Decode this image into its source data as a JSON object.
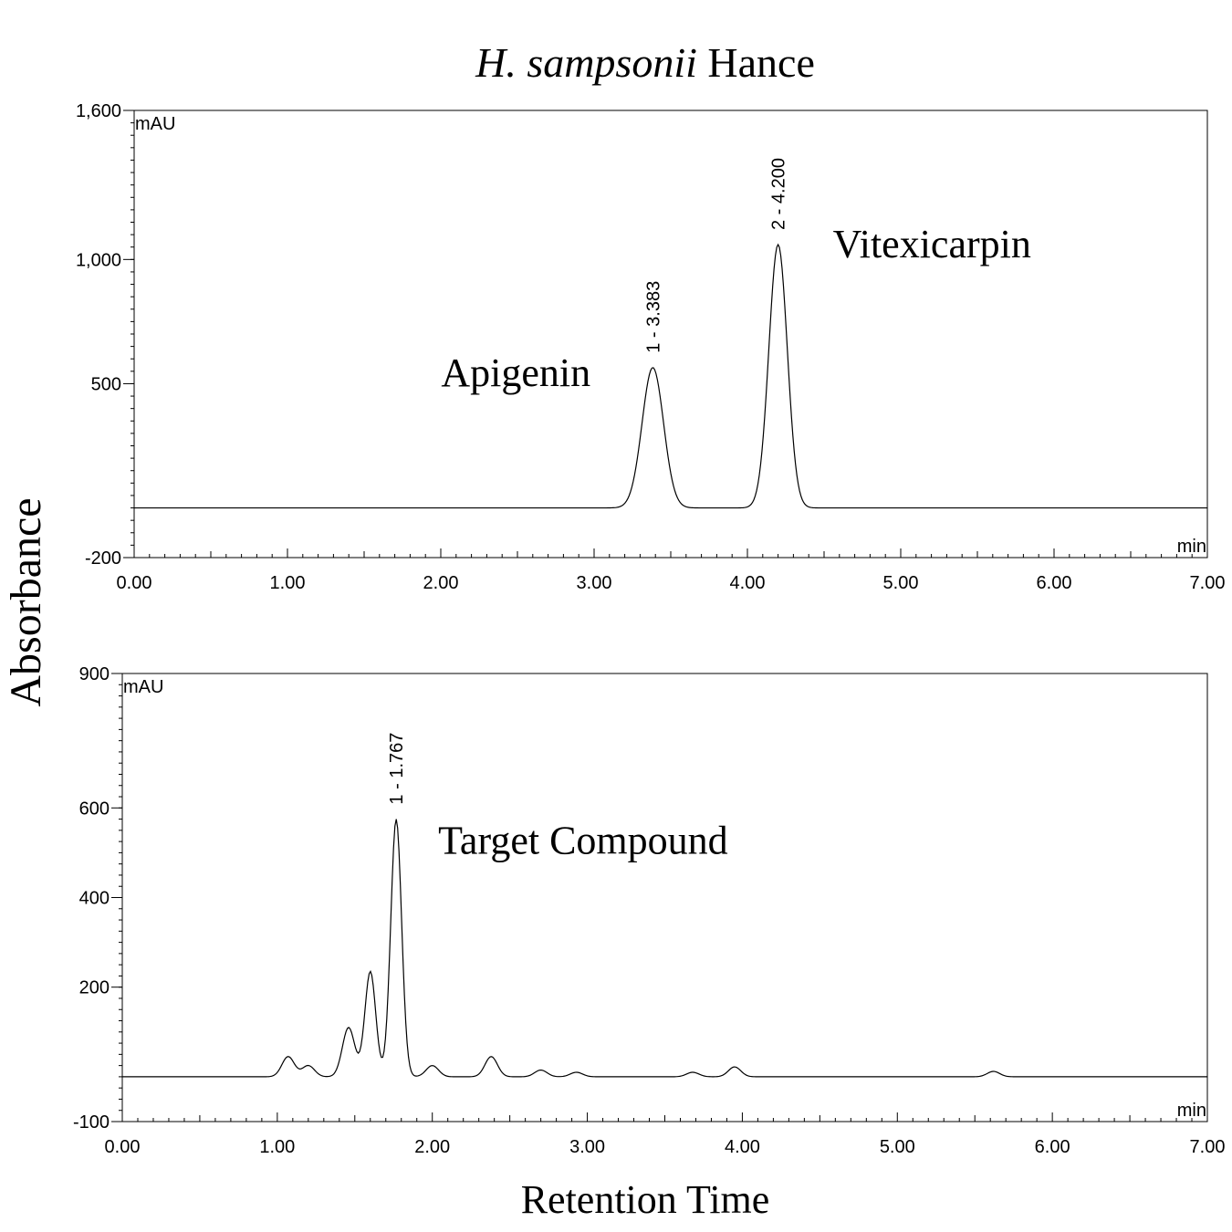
{
  "chart_data": [
    {
      "type": "line",
      "panel": "top",
      "title_italic": "H. sampsonii",
      "title_rest": " Hance",
      "ylabel": "Absorbance",
      "xlabel": "",
      "y_unit": "mAU",
      "x_unit": "min",
      "xlim": [
        0,
        7
      ],
      "ylim": [
        -200,
        1600
      ],
      "x_ticks": [
        "0.00",
        "1.00",
        "2.00",
        "3.00",
        "4.00",
        "5.00",
        "6.00",
        "7.00"
      ],
      "y_ticks": [
        {
          "value": -200,
          "label": "-200"
        },
        {
          "value": 500,
          "label": "500"
        },
        {
          "value": 1000,
          "label": "1,000"
        },
        {
          "value": 1600,
          "label": "1,600"
        }
      ],
      "grid": false,
      "baseline": 0,
      "series": [
        {
          "peaks": [
            {
              "x": 3.383,
              "y": 565,
              "label": "1 - 3.383",
              "name": "Apigenin"
            },
            {
              "x": 4.2,
              "y": 1060,
              "label": "2 - 4.200",
              "name": "Vitexicarpin"
            }
          ]
        }
      ]
    },
    {
      "type": "line",
      "panel": "bottom",
      "ylabel": "",
      "xlabel": "Retention Time",
      "y_unit": "mAU",
      "x_unit": "min",
      "xlim": [
        0,
        7
      ],
      "ylim": [
        -100,
        900
      ],
      "x_ticks": [
        "0.00",
        "1.00",
        "2.00",
        "3.00",
        "4.00",
        "5.00",
        "6.00",
        "7.00"
      ],
      "y_ticks": [
        {
          "value": -100,
          "label": "-100"
        },
        {
          "value": 200,
          "label": "200"
        },
        {
          "value": 400,
          "label": "400"
        },
        {
          "value": 600,
          "label": "600"
        },
        {
          "value": 900,
          "label": "900"
        }
      ],
      "grid": false,
      "baseline": 0,
      "series": [
        {
          "peaks": [
            {
              "x": 1.767,
              "y": 575,
              "label": "1 - 1.767",
              "name": "Target Compound"
            },
            {
              "x": 1.6,
              "y": 235
            },
            {
              "x": 1.46,
              "y": 110
            },
            {
              "x": 1.07,
              "y": 45
            },
            {
              "x": 1.2,
              "y": 25
            },
            {
              "x": 2.0,
              "y": 25
            },
            {
              "x": 2.38,
              "y": 45
            },
            {
              "x": 2.7,
              "y": 15
            },
            {
              "x": 2.93,
              "y": 10
            },
            {
              "x": 3.68,
              "y": 10
            },
            {
              "x": 3.95,
              "y": 22
            },
            {
              "x": 5.62,
              "y": 12
            }
          ]
        }
      ]
    }
  ]
}
